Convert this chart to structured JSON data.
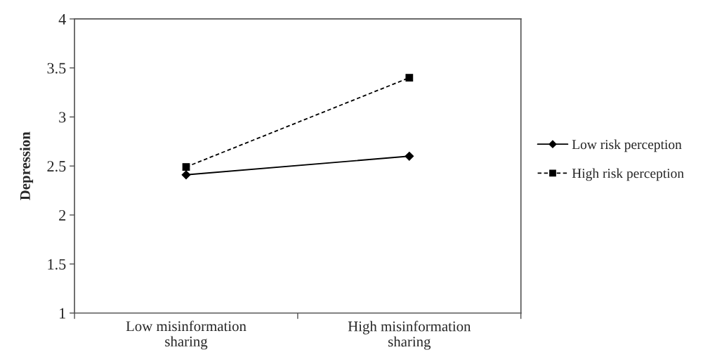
{
  "chart_data": {
    "type": "line",
    "ylabel": "Depression",
    "categories": [
      "Low misinformation\nsharing",
      "High misinformation\nsharing"
    ],
    "series": [
      {
        "name": "Low risk perception",
        "color": "#000000",
        "values": [
          2.41,
          2.6
        ],
        "marker": "diamond",
        "line_style": "solid"
      },
      {
        "name": "High risk perception",
        "color": "#000000",
        "values": [
          2.49,
          3.4
        ],
        "marker": "square",
        "line_style": "dashed"
      }
    ],
    "ylim": [
      1,
      4
    ],
    "yticks": [
      1,
      1.5,
      2,
      2.5,
      3,
      3.5,
      4
    ],
    "grid": false,
    "legend": "right"
  }
}
